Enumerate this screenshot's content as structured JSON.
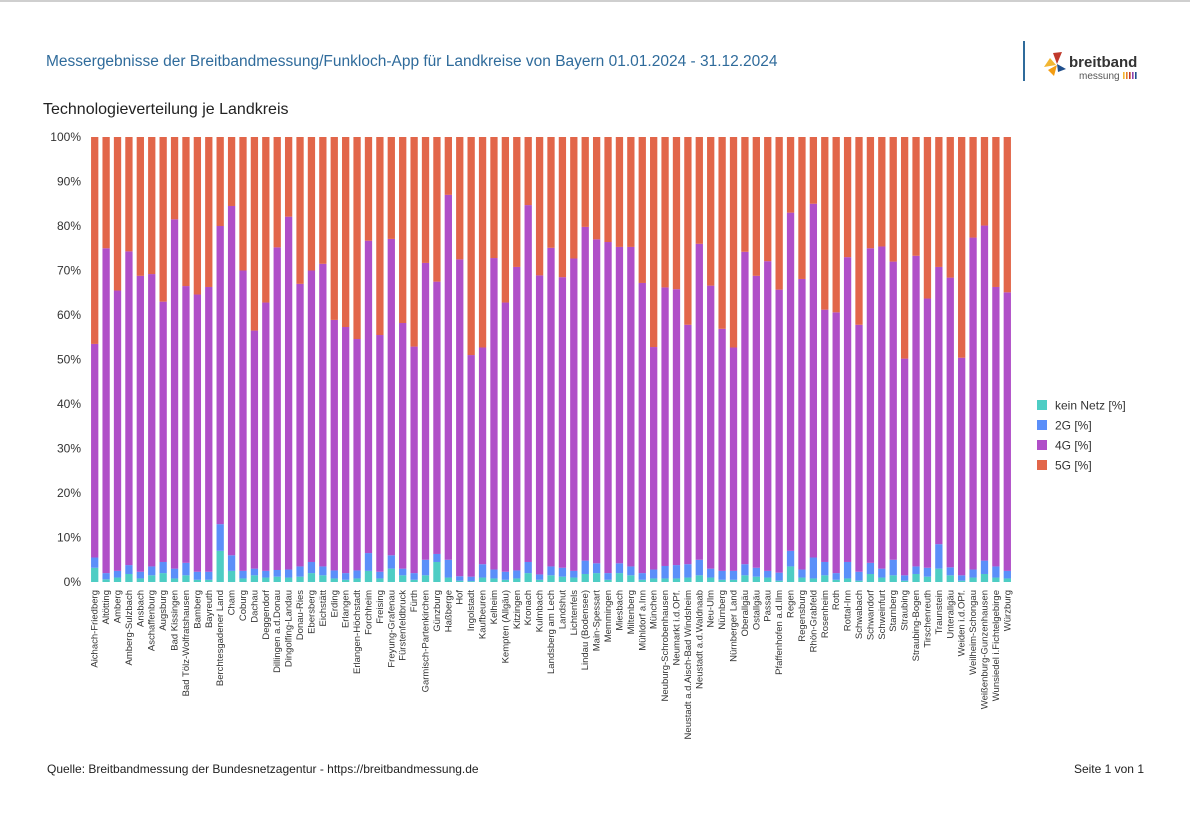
{
  "header": {
    "title": "Messergebnisse der Breitbandmessung/Funkloch-App für Landkreise von Bayern 01.01.2024 - 31.12.2024",
    "logo_text": "breitband",
    "logo_subtext": "messung"
  },
  "subtitle": "Technologieverteilung je Landkreis",
  "footer": {
    "source": "Quelle: Breitbandmessung der Bundesnetzagentur - https://breitbandmessung.de",
    "page": "Seite 1 von 1"
  },
  "colors": {
    "kein_netz": "#4ecdc4",
    "2g": "#5b8ff9",
    "4g": "#b04fc8",
    "5g": "#e2664a",
    "accent": "#2f6b9b"
  },
  "chart_data": {
    "type": "bar",
    "stacked": true,
    "ylim": [
      0,
      100
    ],
    "yticks": [
      "0%",
      "10%",
      "20%",
      "30%",
      "40%",
      "50%",
      "60%",
      "70%",
      "80%",
      "90%",
      "100%"
    ],
    "grid": false,
    "legend_position": "right",
    "categories": [
      "Aichach-Friedberg",
      "Altötting",
      "Amberg",
      "Amberg-Sulzbach",
      "Ansbach",
      "Aschaffenburg",
      "Augsburg",
      "Bad Kissingen",
      "Bad Tölz-Wolfratshausen",
      "Bamberg",
      "Bayreuth",
      "Berchtesgadener Land",
      "Cham",
      "Coburg",
      "Dachau",
      "Deggendorf",
      "Dillingen a.d.Donau",
      "Dingolfing-Landau",
      "Donau-Ries",
      "Ebersberg",
      "Eichstätt",
      "Erding",
      "Erlangen",
      "Erlangen-Höchstadt",
      "Forchheim",
      "Freising",
      "Freyung-Grafenau",
      "Fürstenfeldbruck",
      "Fürth",
      "Garmisch-Partenkirchen",
      "Günzburg",
      "Haßberge",
      "Hof",
      "Ingolstadt",
      "Kaufbeuren",
      "Kelheim",
      "Kempten (Allgäu)",
      "Kitzingen",
      "Kronach",
      "Kulmbach",
      "Landsberg am Lech",
      "Landshut",
      "Lichtenfels",
      "Lindau (Bodensee)",
      "Main-Spessart",
      "Memmingen",
      "Miesbach",
      "Miltenberg",
      "Mühldorf a.Inn",
      "München",
      "Neuburg-Schrobenhausen",
      "Neumarkt i.d.OPf.",
      "Neustadt a.d.Aisch-Bad Windsheim",
      "Neustadt a.d.Waldnaab",
      "Neu-Ulm",
      "Nürnberg",
      "Nürnberger Land",
      "Oberallgäu",
      "Ostallgäu",
      "Passau",
      "Pfaffenhofen a.d.Ilm",
      "Regen",
      "Regensburg",
      "Rhön-Grabfeld",
      "Rosenheim",
      "Roth",
      "Rottal-Inn",
      "Schwabach",
      "Schwandorf",
      "Schweinfurt",
      "Starnberg",
      "Straubing",
      "Straubing-Bogen",
      "Tirschenreuth",
      "Traunstein",
      "Unterallgäu",
      "Weiden i.d.OPf.",
      "Weilheim-Schongau",
      "Weißenburg-Gunzenhausen",
      "Wunsiedel i.Fichtelgebirge",
      "Würzburg"
    ],
    "series": [
      {
        "name": "kein Netz [%]",
        "values": [
          3.2,
          0.6,
          1.0,
          1.8,
          0.8,
          1.5,
          2.0,
          0.8,
          1.5,
          0.5,
          0.5,
          7.0,
          2.5,
          0.8,
          1.5,
          1.0,
          1.2,
          1.0,
          1.2,
          2.0,
          1.5,
          0.8,
          0.5,
          0.8,
          2.5,
          0.8,
          3.0,
          1.5,
          0.5,
          1.5,
          4.5,
          1.0,
          0.3,
          0.2,
          1.0,
          0.8,
          0.5,
          0.8,
          2.0,
          0.5,
          1.5,
          1.2,
          1.0,
          1.8,
          2.0,
          0.5,
          2.0,
          1.5,
          0.5,
          0.8,
          0.8,
          0.8,
          1.0,
          1.5,
          1.0,
          0.5,
          0.5,
          1.5,
          1.2,
          1.0,
          0.3,
          3.5,
          1.0,
          0.8,
          1.5,
          0.5,
          0.8,
          0.3,
          1.8,
          1.0,
          1.5,
          0.3,
          1.8,
          1.2,
          3.0,
          1.5,
          0.3,
          1.0,
          1.8,
          1.0,
          0.8
        ]
      },
      {
        "name": "2G [%]",
        "values": [
          2.3,
          1.4,
          1.5,
          2.0,
          1.5,
          2.0,
          2.5,
          2.2,
          2.8,
          1.8,
          1.8,
          6.0,
          3.5,
          1.7,
          1.5,
          1.5,
          1.5,
          1.8,
          2.3,
          2.5,
          2.0,
          1.8,
          1.5,
          1.8,
          4.0,
          1.5,
          3.0,
          1.5,
          1.5,
          3.5,
          1.8,
          4.0,
          1.0,
          1.0,
          3.0,
          2.0,
          1.8,
          1.8,
          2.5,
          1.2,
          2.0,
          2.0,
          1.5,
          3.0,
          2.2,
          1.5,
          2.2,
          2.0,
          1.5,
          2.0,
          2.8,
          3.0,
          3.0,
          3.5,
          2.0,
          2.0,
          2.0,
          2.5,
          2.0,
          1.5,
          1.8,
          3.5,
          1.8,
          4.7,
          3.0,
          1.5,
          3.7,
          2.0,
          2.5,
          2.0,
          3.5,
          1.2,
          1.7,
          2.0,
          5.5,
          1.8,
          1.2,
          1.8,
          3.0,
          2.5,
          1.7
        ]
      },
      {
        "name": "4G [%]",
        "values": [
          48.0,
          73.0,
          63.0,
          70.5,
          66.5,
          65.7,
          58.5,
          78.5,
          62.2,
          62.3,
          64.0,
          67.0,
          78.5,
          67.5,
          53.5,
          60.3,
          72.5,
          79.3,
          63.5,
          65.5,
          68.0,
          56.3,
          55.3,
          52.0,
          70.2,
          53.2,
          71.1,
          55.2,
          50.9,
          66.7,
          61.2,
          82.0,
          71.2,
          49.8,
          48.7,
          70.0,
          60.5,
          68.2,
          80.2,
          67.2,
          71.6,
          65.3,
          70.2,
          75.0,
          72.8,
          74.4,
          71.1,
          71.8,
          65.2,
          50.0,
          62.6,
          62.0,
          53.8,
          71.0,
          63.6,
          54.4,
          50.2,
          70.2,
          65.6,
          69.6,
          63.6,
          76.0,
          65.3,
          79.5,
          56.7,
          58.6,
          68.5,
          55.5,
          70.7,
          72.4,
          67.0,
          48.7,
          69.8,
          60.5,
          62.3,
          65.1,
          48.9,
          74.6,
          75.3,
          62.8,
          62.6
        ]
      },
      {
        "name": "5G [%]",
        "values": [
          46.5,
          25.0,
          34.5,
          25.7,
          31.2,
          30.8,
          37.0,
          18.5,
          33.5,
          35.4,
          33.7,
          20.0,
          15.5,
          30.0,
          43.5,
          37.2,
          24.8,
          17.9,
          33.0,
          30.0,
          28.5,
          41.1,
          42.7,
          45.4,
          23.3,
          44.5,
          22.9,
          41.8,
          47.1,
          28.3,
          32.5,
          13.0,
          27.5,
          49.0,
          47.3,
          27.2,
          37.2,
          29.2,
          15.3,
          31.1,
          24.9,
          31.5,
          27.3,
          20.2,
          23.0,
          23.6,
          24.7,
          24.7,
          32.8,
          47.2,
          33.8,
          34.2,
          42.2,
          24.0,
          33.4,
          43.1,
          47.3,
          25.8,
          31.2,
          27.9,
          34.3,
          17.0,
          31.9,
          15.0,
          38.8,
          39.4,
          27.0,
          42.2,
          25.0,
          24.6,
          28.0,
          49.8,
          26.7,
          36.3,
          29.2,
          31.6,
          49.6,
          22.6,
          19.9,
          33.7,
          34.9
        ]
      }
    ]
  }
}
